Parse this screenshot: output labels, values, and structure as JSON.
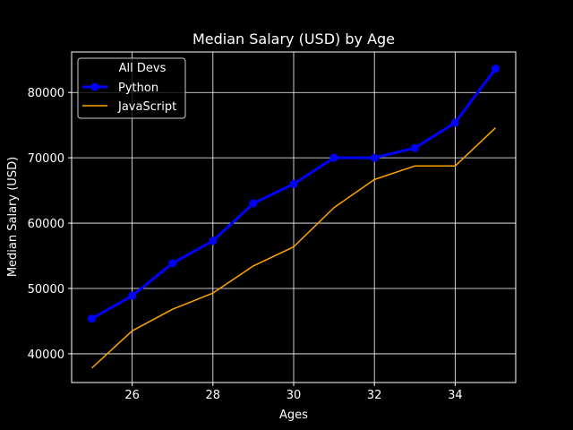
{
  "chart_data": {
    "type": "line",
    "title": "Median Salary (USD) by Age",
    "xlabel": "Ages",
    "ylabel": "Median Salary (USD)",
    "x": [
      25,
      26,
      27,
      28,
      29,
      30,
      31,
      32,
      33,
      34,
      35
    ],
    "xlim": [
      24.5,
      35.5
    ],
    "ylim": [
      35600,
      86200
    ],
    "xticks": [
      26,
      28,
      30,
      32,
      34
    ],
    "yticks": [
      40000,
      50000,
      60000,
      70000,
      80000
    ],
    "grid": true,
    "background": "#000000",
    "legend": {
      "title": "All Devs",
      "placement": "top-left"
    },
    "series": [
      {
        "name": "Python",
        "color": "#0000ff",
        "marker": "circle",
        "values": [
          45372,
          48876,
          53850,
          57287,
          63016,
          65998,
          70003,
          70000,
          71496,
          75370,
          83640
        ]
      },
      {
        "name": "JavaScript",
        "color": "#ffa500",
        "marker": "none",
        "values": [
          37810,
          43515,
          46823,
          49293,
          53437,
          56373,
          62375,
          66674,
          68745,
          68746,
          74583
        ]
      }
    ]
  }
}
